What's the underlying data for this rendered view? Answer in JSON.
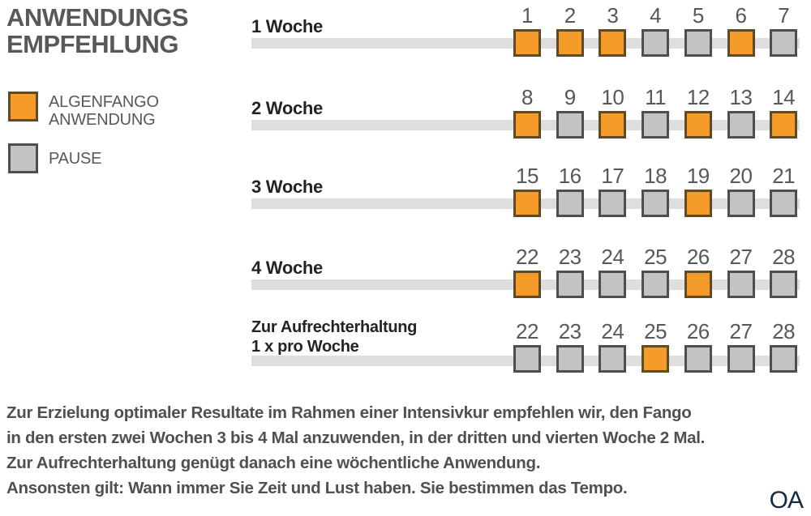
{
  "title": {
    "line1": "ANWENDUNGS",
    "line2": "EMPFEHLUNG"
  },
  "legend": {
    "anwendung": {
      "line1": "ALGENFANGO",
      "line2": "ANWENDUNG"
    },
    "pause": "PAUSE"
  },
  "colors": {
    "anwendung_fill": "#F49B2A",
    "anwendung_border": "#5E4A24",
    "pause_fill": "#C3C3C5",
    "pause_border": "#4E4E50",
    "track": "#DEDEDE",
    "text_gray": "#58585A",
    "text_dark": "#232325",
    "text_footer": "#4F4F54",
    "watermark": "#15293F"
  },
  "rows": [
    {
      "label": [
        "1 Woche"
      ],
      "days": [
        {
          "num": "1",
          "state": "anwendung"
        },
        {
          "num": "2",
          "state": "anwendung"
        },
        {
          "num": "3",
          "state": "anwendung"
        },
        {
          "num": "4",
          "state": "pause"
        },
        {
          "num": "5",
          "state": "pause"
        },
        {
          "num": "6",
          "state": "anwendung"
        },
        {
          "num": "7",
          "state": "pause"
        }
      ]
    },
    {
      "label": [
        "2 Woche"
      ],
      "days": [
        {
          "num": "8",
          "state": "anwendung"
        },
        {
          "num": "9",
          "state": "pause"
        },
        {
          "num": "10",
          "state": "anwendung"
        },
        {
          "num": "11",
          "state": "pause"
        },
        {
          "num": "12",
          "state": "anwendung"
        },
        {
          "num": "13",
          "state": "pause"
        },
        {
          "num": "14",
          "state": "anwendung"
        }
      ]
    },
    {
      "label": [
        "3 Woche"
      ],
      "days": [
        {
          "num": "15",
          "state": "anwendung"
        },
        {
          "num": "16",
          "state": "pause"
        },
        {
          "num": "17",
          "state": "pause"
        },
        {
          "num": "18",
          "state": "pause"
        },
        {
          "num": "19",
          "state": "anwendung"
        },
        {
          "num": "20",
          "state": "pause"
        },
        {
          "num": "21",
          "state": "pause"
        }
      ]
    },
    {
      "label": [
        "4 Woche"
      ],
      "days": [
        {
          "num": "22",
          "state": "anwendung"
        },
        {
          "num": "23",
          "state": "pause"
        },
        {
          "num": "24",
          "state": "pause"
        },
        {
          "num": "25",
          "state": "pause"
        },
        {
          "num": "26",
          "state": "anwendung"
        },
        {
          "num": "27",
          "state": "pause"
        },
        {
          "num": "28",
          "state": "pause"
        }
      ]
    },
    {
      "label": [
        "Zur Aufrechterhaltung",
        "1 x pro Woche"
      ],
      "days": [
        {
          "num": "22",
          "state": "pause"
        },
        {
          "num": "23",
          "state": "pause"
        },
        {
          "num": "24",
          "state": "pause"
        },
        {
          "num": "25",
          "state": "anwendung"
        },
        {
          "num": "26",
          "state": "pause"
        },
        {
          "num": "27",
          "state": "pause"
        },
        {
          "num": "28",
          "state": "pause"
        }
      ]
    }
  ],
  "footer": {
    "lines": [
      "Zur Erzielung optimaler Resultate im Rahmen einer Intensivkur empfehlen wir, den Fango",
      "in den ersten zwei Wochen 3 bis 4 Mal anzuwenden, in der dritten und vierten Woche 2 Mal.",
      "Zur Aufrechterhaltung genügt danach eine wöchentliche Anwendung.",
      "Ansonsten gilt: Wann immer Sie Zeit und Lust haben. Sie bestimmen das Tempo."
    ]
  },
  "watermark": "OA"
}
